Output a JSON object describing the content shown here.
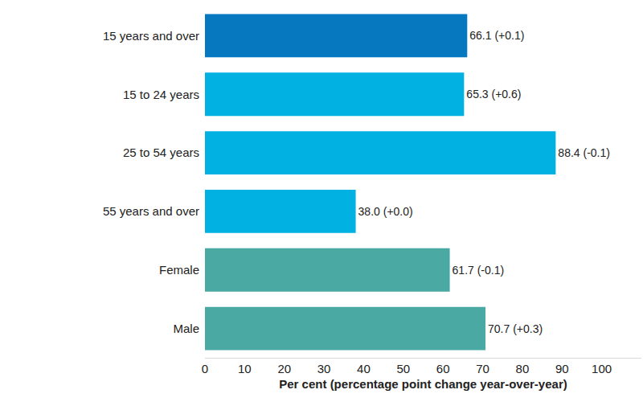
{
  "chart_data": {
    "type": "bar",
    "orientation": "horizontal",
    "categories": [
      "15 years and over",
      "15 to 24 years",
      "25 to 54 years",
      "55 years and over",
      "Female",
      "Male"
    ],
    "values": [
      66.1,
      65.3,
      88.4,
      38.0,
      61.7,
      70.7
    ],
    "value_labels": [
      "66.1 (+0.1)",
      "65.3 (+0.6)",
      "88.4 (-0.1)",
      "38.0 (+0.0)",
      "61.7 (-0.1)",
      "70.7 (+0.3)"
    ],
    "colors": [
      "#0578bf",
      "#00b1e1",
      "#00b1e1",
      "#00b1e1",
      "#4aa9a3",
      "#4aa9a3"
    ],
    "xlabel": "Per cent (percentage point change year-over-year)",
    "xlim": [
      0,
      110
    ],
    "xticks": [
      0,
      10,
      20,
      30,
      40,
      50,
      60,
      70,
      80,
      90,
      100
    ],
    "grid": false,
    "data_labels": true
  }
}
